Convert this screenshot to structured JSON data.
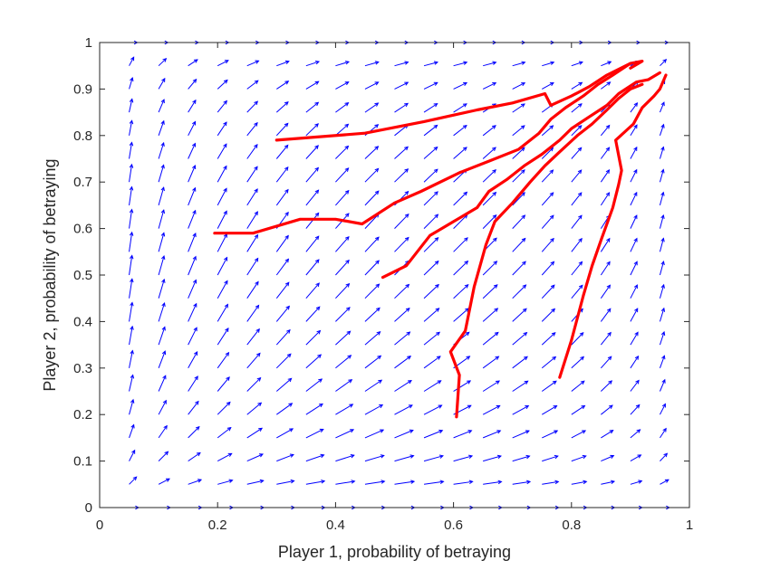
{
  "chart_data": {
    "type": "quiver",
    "title": "",
    "xlabel": "Player 1, probability of betraying",
    "ylabel": "Player 2, probability of betraying",
    "xlim": [
      0,
      1
    ],
    "ylim": [
      0,
      1
    ],
    "xticks": [
      0,
      0.2,
      0.4,
      0.6,
      0.8,
      1
    ],
    "xtick_labels": [
      "0",
      "0.2",
      "0.4",
      "0.6",
      "0.8",
      "1"
    ],
    "yticks": [
      0,
      0.1,
      0.2,
      0.3,
      0.4,
      0.5,
      0.6,
      0.7,
      0.8,
      0.9,
      1
    ],
    "ytick_labels": [
      "0",
      "0.1",
      "0.2",
      "0.3",
      "0.4",
      "0.5",
      "0.6",
      "0.7",
      "0.8",
      "0.9",
      "1"
    ],
    "grid": false,
    "vector_field": {
      "color": "#0000ff",
      "grid_x_start": 0.05,
      "grid_x_step": 0.05,
      "grid_x_count": 19,
      "grid_y_start": 0,
      "grid_y_step": 0.05,
      "grid_y_count": 21,
      "direction": "v_x = 2*x*(1-x)*(1 - 0.5*y), v_y = 2*y*(1-y)*(1 - 0.5*x)"
    },
    "trajectories": {
      "color": "#ff0000",
      "series": [
        {
          "points": [
            [
              0.3,
              0.79
            ],
            [
              0.45,
              0.805
            ],
            [
              0.55,
              0.83
            ],
            [
              0.64,
              0.855
            ],
            [
              0.7,
              0.87
            ],
            [
              0.755,
              0.89
            ],
            [
              0.765,
              0.865
            ],
            [
              0.8,
              0.885
            ],
            [
              0.83,
              0.905
            ],
            [
              0.86,
              0.93
            ],
            [
              0.9,
              0.955
            ],
            [
              0.92,
              0.96
            ],
            [
              0.9,
              0.945
            ]
          ]
        },
        {
          "points": [
            [
              0.195,
              0.59
            ],
            [
              0.26,
              0.59
            ],
            [
              0.34,
              0.62
            ],
            [
              0.4,
              0.62
            ],
            [
              0.445,
              0.61
            ],
            [
              0.5,
              0.655
            ],
            [
              0.545,
              0.68
            ],
            [
              0.61,
              0.72
            ],
            [
              0.66,
              0.745
            ],
            [
              0.71,
              0.77
            ],
            [
              0.745,
              0.805
            ],
            [
              0.765,
              0.835
            ],
            [
              0.79,
              0.86
            ],
            [
              0.82,
              0.885
            ],
            [
              0.845,
              0.91
            ],
            [
              0.87,
              0.93
            ],
            [
              0.9,
              0.955
            ]
          ]
        },
        {
          "points": [
            [
              0.48,
              0.495
            ],
            [
              0.52,
              0.52
            ],
            [
              0.56,
              0.585
            ],
            [
              0.6,
              0.615
            ],
            [
              0.64,
              0.645
            ],
            [
              0.66,
              0.68
            ],
            [
              0.69,
              0.705
            ],
            [
              0.72,
              0.735
            ],
            [
              0.75,
              0.76
            ],
            [
              0.78,
              0.79
            ],
            [
              0.8,
              0.815
            ],
            [
              0.83,
              0.84
            ],
            [
              0.86,
              0.865
            ],
            [
              0.88,
              0.89
            ],
            [
              0.91,
              0.915
            ],
            [
              0.93,
              0.92
            ],
            [
              0.95,
              0.935
            ]
          ]
        },
        {
          "points": [
            [
              0.605,
              0.195
            ],
            [
              0.61,
              0.285
            ],
            [
              0.595,
              0.335
            ],
            [
              0.62,
              0.38
            ],
            [
              0.635,
              0.475
            ],
            [
              0.655,
              0.565
            ],
            [
              0.67,
              0.615
            ],
            [
              0.7,
              0.655
            ],
            [
              0.73,
              0.7
            ],
            [
              0.755,
              0.735
            ],
            [
              0.78,
              0.765
            ],
            [
              0.81,
              0.8
            ],
            [
              0.835,
              0.825
            ],
            [
              0.86,
              0.855
            ],
            [
              0.88,
              0.88
            ],
            [
              0.9,
              0.9
            ],
            [
              0.92,
              0.91
            ]
          ]
        },
        {
          "points": [
            [
              0.78,
              0.28
            ],
            [
              0.8,
              0.36
            ],
            [
              0.82,
              0.455
            ],
            [
              0.835,
              0.52
            ],
            [
              0.85,
              0.575
            ],
            [
              0.87,
              0.645
            ],
            [
              0.88,
              0.695
            ],
            [
              0.885,
              0.725
            ],
            [
              0.875,
              0.79
            ],
            [
              0.905,
              0.825
            ],
            [
              0.92,
              0.86
            ],
            [
              0.94,
              0.885
            ],
            [
              0.95,
              0.9
            ],
            [
              0.96,
              0.93
            ]
          ]
        }
      ]
    }
  }
}
